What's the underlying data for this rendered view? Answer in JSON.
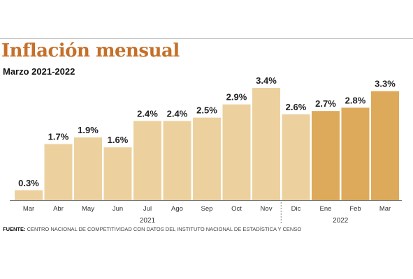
{
  "header": {
    "title": "Inflación mensual",
    "subtitle": "Marzo 2021-2022"
  },
  "source": {
    "label": "FUENTE:",
    "text": "CENTRO NACIONAL DE COMPETITIVIDAD CON DATOS DEL INSTITUTO NACIONAL DE ESTADÍSTICA Y CENSO"
  },
  "colors": {
    "title": "#c5702a",
    "bar_2021": "#ecd19f",
    "bar_2022": "#ddaa5b",
    "labels": "#222222",
    "axis": "#777777"
  },
  "chart_data": {
    "type": "bar",
    "title": "Inflación mensual",
    "subtitle": "Marzo 2021-2022",
    "xlabel": "",
    "ylabel": "",
    "ylim": [
      0,
      3.5
    ],
    "grid": false,
    "categories": [
      "Mar",
      "Abr",
      "May",
      "Jun",
      "Jul",
      "Ago",
      "Sep",
      "Oct",
      "Nov",
      "Dic",
      "Ene",
      "Feb",
      "Mar"
    ],
    "values": [
      0.3,
      1.7,
      1.9,
      1.6,
      2.4,
      2.4,
      2.5,
      2.9,
      3.4,
      2.6,
      2.7,
      2.8,
      3.3
    ],
    "value_labels": [
      "0.3%",
      "1.7%",
      "1.9%",
      "1.6%",
      "2.4%",
      "2.4%",
      "2.5%",
      "2.9%",
      "3.4%",
      "2.6%",
      "2.7%",
      "2.8%",
      "3.3%"
    ],
    "groups": [
      {
        "label": "2021",
        "categories": [
          "Mar",
          "Abr",
          "May",
          "Jun",
          "Jul",
          "Ago",
          "Sep",
          "Oct",
          "Nov"
        ]
      },
      {
        "label": "2022",
        "categories": [
          "Dic",
          "Ene",
          "Feb",
          "Mar"
        ]
      }
    ]
  }
}
